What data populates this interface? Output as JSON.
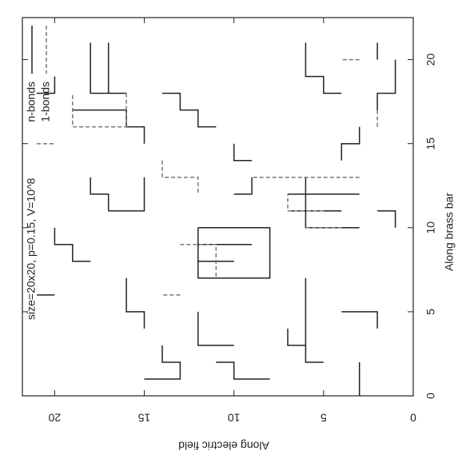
{
  "chart_data": {
    "type": "line",
    "title": "size=20x20, p=0.15, V=10^8",
    "x_label": "Along brass bar",
    "y_label": "Along electric field",
    "xlim": [
      0,
      22.5
    ],
    "xticks": [
      0,
      5,
      10,
      15,
      20
    ],
    "ylim": [
      0,
      21.8
    ],
    "yticks": [
      0,
      5,
      10,
      15,
      20
    ],
    "series": [
      {
        "name": "n-bonds",
        "color": "#222222",
        "dash": false,
        "x": [
          21,
          18,
          18,
          null,
          21,
          18,
          null,
          19,
          18,
          18,
          null,
          17,
          17,
          16,
          16,
          15,
          null,
          18,
          18,
          17,
          17,
          16,
          16,
          null,
          15,
          14,
          14,
          null,
          21,
          19,
          19,
          18,
          18,
          null,
          20,
          21,
          null,
          20,
          18,
          18,
          17,
          null,
          16,
          15,
          15,
          14,
          null,
          13,
          12,
          12,
          11,
          null,
          13,
          12,
          11,
          11,
          null,
          10,
          9,
          9,
          8,
          8,
          null,
          7,
          5,
          5,
          4,
          null,
          3,
          2,
          2,
          1,
          1,
          null,
          2,
          2,
          1,
          1,
          null,
          4,
          3,
          3,
          2,
          2,
          null,
          2,
          1,
          0,
          null,
          10,
          10,
          7,
          7,
          10,
          null,
          9,
          9,
          null,
          8,
          8,
          null,
          13,
          12,
          12,
          null,
          13,
          10,
          10,
          null,
          12,
          12,
          null,
          11,
          11,
          null,
          7,
          3,
          null,
          5,
          5,
          4,
          null,
          10,
          11,
          11,
          null,
          6,
          6,
          null,
          3,
          3,
          5
        ],
        "values": [
          18,
          18,
          16,
          null,
          17,
          17,
          null,
          20,
          20,
          21,
          null,
          19,
          16,
          16,
          15,
          15,
          null,
          14,
          13,
          13,
          12,
          12,
          11,
          null,
          10,
          10,
          9,
          null,
          6,
          6,
          5,
          5,
          4,
          null,
          2,
          2,
          null,
          1,
          1,
          2,
          2,
          null,
          3,
          3,
          4,
          4,
          null,
          18,
          18,
          17,
          17,
          null,
          15,
          15,
          15,
          17,
          null,
          20,
          20,
          19,
          19,
          18,
          null,
          16,
          16,
          15,
          15,
          null,
          14,
          14,
          13,
          13,
          15,
          null,
          11,
          10,
          10,
          8,
          null,
          7,
          7,
          6,
          6,
          5,
          null,
          3,
          3,
          3,
          null,
          12,
          8,
          8,
          12,
          12,
          null,
          12,
          9,
          null,
          12,
          10,
          null,
          9,
          9,
          10,
          null,
          6,
          6,
          3,
          null,
          7,
          3,
          null,
          7,
          4,
          null,
          6,
          6,
          null,
          4,
          2,
          2,
          null,
          1,
          1,
          2,
          null,
          21,
          20,
          null,
          10,
          12,
          12
        ]
      },
      {
        "name": "1-bonds",
        "color": "#777777",
        "dash": true,
        "x": [
          18,
          16,
          16,
          18,
          null,
          14,
          13,
          13,
          12,
          null,
          9,
          9,
          7,
          null,
          13,
          13,
          null,
          11,
          11,
          12,
          null,
          10,
          10,
          null,
          15,
          15,
          null,
          20,
          20,
          null,
          17,
          16,
          null,
          6,
          6
        ],
        "values": [
          16,
          16,
          19,
          19,
          null,
          14,
          14,
          12,
          12,
          null,
          13,
          11,
          11,
          null,
          3,
          9,
          null,
          5,
          7,
          7,
          null,
          6,
          4,
          null,
          21,
          20,
          null,
          3,
          4,
          null,
          2,
          2,
          null,
          13,
          14
        ]
      }
    ]
  }
}
